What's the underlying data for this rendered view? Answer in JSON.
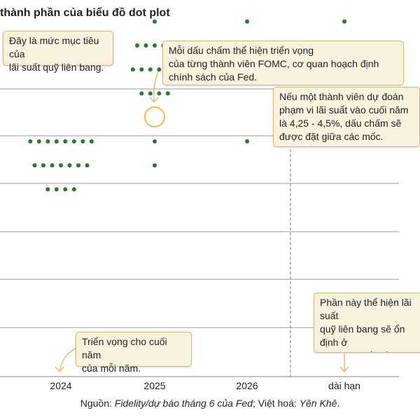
{
  "title": "thành phần của biểu đồ dot plot",
  "callouts": {
    "target_rate": "Đây là mức mục tiêu của\nlãi suất quỹ liên bang.",
    "each_dot": "Mỗi dấu chấm thể hiện triển vọng\ncủa từng thành viên FOMC, cơ quan hoạch định\nchính sách của Fed.",
    "between_ticks": "Nếu một thành viên dự đoán\nphạm vi lãi suất vào cuối năm\nlà 4,25 - 4,5%, dấu chấm sẽ\nđược đặt giữa các mốc.",
    "year_end": "Triển vọng cho cuối năm\ncủa mỗi năm.",
    "longer_run": "Phần này thể hiện lãi suất\nquỹ liên bang sẽ ổn định ở\nmức nào nếu nền kinh tế\nkhông đón thêm cú sốc"
  },
  "source": {
    "prefix": "Nguồn: ",
    "italic1": "Fidelity/dự báo tháng 6 của Fed",
    "middle": "; Việt hoá: ",
    "italic2": "Yên Khê",
    "suffix": "."
  },
  "chart_data": {
    "type": "scatter",
    "title": "",
    "xlabel": "",
    "ylabel": "",
    "categories": [
      "2024",
      "2025",
      "2026",
      "dài hạn"
    ],
    "grid": true,
    "columns": [
      {
        "category": "2024",
        "rows": [
          {
            "level": 5.375,
            "count": 4
          },
          {
            "level": 5.125,
            "count": 7
          },
          {
            "level": 4.875,
            "count": 8
          }
        ]
      },
      {
        "category": "2025",
        "rows": [
          {
            "level": 5.125,
            "count": 1,
            "highlighted": true
          },
          {
            "level": 4.875,
            "count": 1
          },
          {
            "level": 4.375,
            "count": 4
          },
          {
            "level": 4.125,
            "count": 6
          },
          {
            "level": 3.875,
            "count": 5
          },
          {
            "level": 3.625,
            "count": 1
          },
          {
            "level": 3.375,
            "count": 1
          },
          {
            "level": 2.625,
            "count": 1
          }
        ]
      },
      {
        "category": "2026",
        "rows": [
          {
            "level": 4.875,
            "count": 1
          },
          {
            "level": 3.625,
            "count": 1
          },
          {
            "level": 3.375,
            "count": 3
          },
          {
            "level": 3.125,
            "count": 3
          },
          {
            "level": 2.875,
            "count": 7
          },
          {
            "level": 2.625,
            "count": 3
          },
          {
            "level": 2.375,
            "count": 1
          },
          {
            "level": 2.125,
            "count": 1
          }
        ]
      },
      {
        "category": "dài hạn",
        "rows": [
          {
            "level": 3.625,
            "count": 1
          },
          {
            "level": 3.375,
            "count": 2
          },
          {
            "level": 3.125,
            "count": 1
          },
          {
            "level": 2.875,
            "count": 3
          },
          {
            "level": 2.625,
            "count": 2
          },
          {
            "level": 2.375,
            "count": 3
          },
          {
            "level": 2.125,
            "count": 3
          },
          {
            "level": 1.875,
            "count": 1
          }
        ]
      }
    ],
    "colors": {
      "dot": "#2a7a2a",
      "highlight": "#e0c34a",
      "grid": "#999999",
      "divider": "#888888"
    }
  }
}
